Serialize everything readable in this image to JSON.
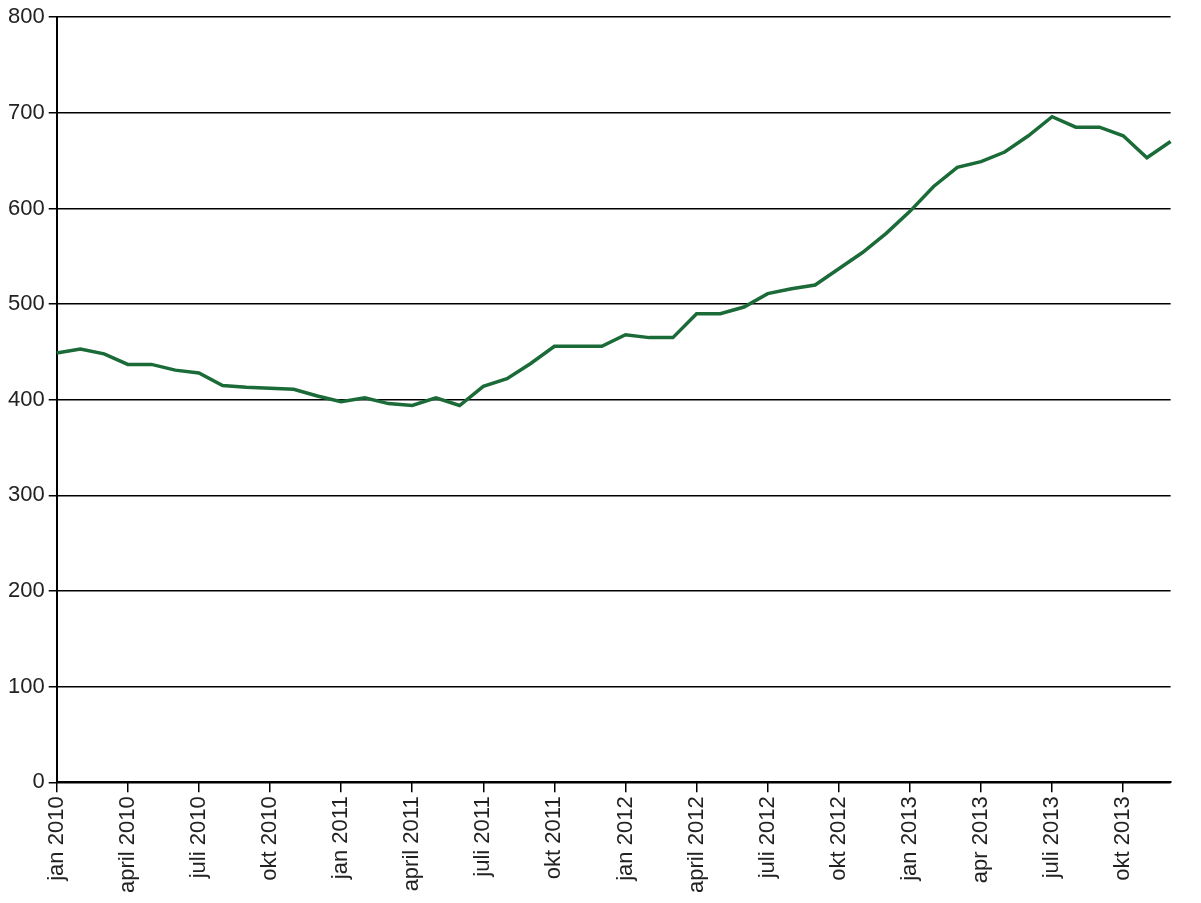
{
  "chart_data": {
    "type": "line",
    "categories": [
      "jan 2010",
      null,
      null,
      "april 2010",
      null,
      null,
      "juli 2010",
      null,
      null,
      "okt 2010",
      null,
      null,
      "jan 2011",
      null,
      null,
      "april 2011",
      null,
      null,
      "juli 2011",
      null,
      null,
      "okt 2011",
      null,
      null,
      "jan 2012",
      null,
      null,
      "april 2012",
      null,
      null,
      "juli 2012",
      null,
      null,
      "okt 2012",
      null,
      null,
      "jan 2013",
      null,
      null,
      "apr 2013",
      null,
      null,
      "juli 2013",
      null,
      null,
      "okt 2013",
      null,
      null
    ],
    "values": [
      449,
      453,
      448,
      437,
      437,
      431,
      428,
      415,
      413,
      412,
      411,
      404,
      398,
      402,
      396,
      394,
      402,
      394,
      414,
      422,
      438,
      456,
      456,
      456,
      468,
      465,
      465,
      490,
      490,
      497,
      511,
      516,
      520,
      537,
      554,
      574,
      597,
      623,
      643,
      649,
      659,
      676,
      696,
      685,
      685,
      676,
      653,
      670
    ],
    "color": "#1a6b38",
    "ylim": [
      0,
      800
    ],
    "yticks": [
      0,
      100,
      200,
      300,
      400,
      500,
      600,
      700,
      800
    ],
    "grid": true
  }
}
